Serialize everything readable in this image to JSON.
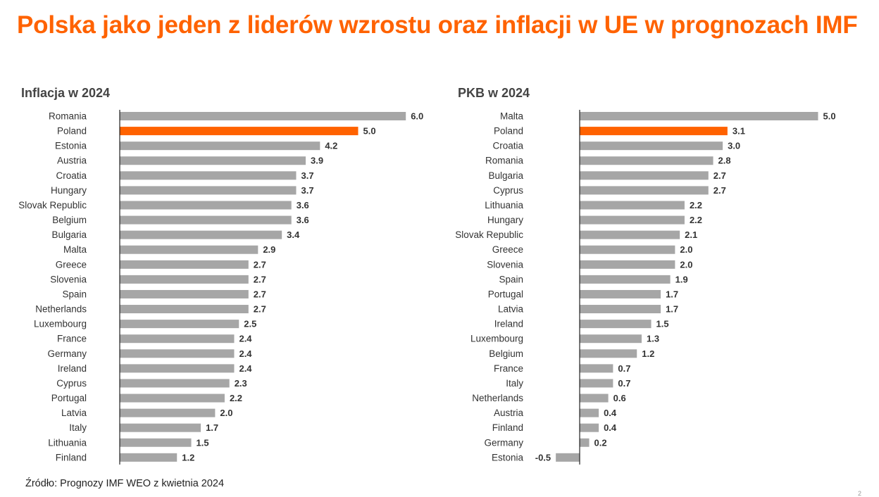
{
  "title": "Polska jako jeden z liderów wzrostu oraz inflacji w UE w prognozach IMF",
  "source": "Źródło: Prognozy IMF WEO z kwietnia 2024",
  "page_number": "2",
  "colors": {
    "title": "#ff6200",
    "bar": "#a6a6a6",
    "highlight": "#ff6200",
    "axis": "#222222"
  },
  "chart_data": [
    {
      "type": "bar",
      "orientation": "horizontal",
      "title": "Inflacja w 2024",
      "highlight": "Poland",
      "categories": [
        "Romania",
        "Poland",
        "Estonia",
        "Austria",
        "Croatia",
        "Hungary",
        "Slovak Republic",
        "Belgium",
        "Bulgaria",
        "Malta",
        "Greece",
        "Slovenia",
        "Spain",
        "Netherlands",
        "Luxembourg",
        "France",
        "Germany",
        "Ireland",
        "Cyprus",
        "Portugal",
        "Latvia",
        "Italy",
        "Lithuania",
        "Finland"
      ],
      "values": [
        6.0,
        5.0,
        4.2,
        3.9,
        3.7,
        3.7,
        3.6,
        3.6,
        3.4,
        2.9,
        2.7,
        2.7,
        2.7,
        2.7,
        2.5,
        2.4,
        2.4,
        2.4,
        2.3,
        2.2,
        2.0,
        1.7,
        1.5,
        1.2
      ],
      "value_labels": [
        "6.0",
        "5.0",
        "4.2",
        "3.9",
        "3.7",
        "3.7",
        "3.6",
        "3.6",
        "3.4",
        "2.9",
        "2.7",
        "2.7",
        "2.7",
        "2.7",
        "2.5",
        "2.4",
        "2.4",
        "2.4",
        "2.3",
        "2.2",
        "2.0",
        "1.7",
        "1.5",
        "1.2"
      ]
    },
    {
      "type": "bar",
      "orientation": "horizontal",
      "title": "PKB w 2024",
      "highlight": "Poland",
      "categories": [
        "Malta",
        "Poland",
        "Croatia",
        "Romania",
        "Bulgaria",
        "Cyprus",
        "Lithuania",
        "Hungary",
        "Slovak Republic",
        "Greece",
        "Slovenia",
        "Spain",
        "Portugal",
        "Latvia",
        "Ireland",
        "Luxembourg",
        "Belgium",
        "France",
        "Italy",
        "Netherlands",
        "Austria",
        "Finland",
        "Germany",
        "Estonia"
      ],
      "values": [
        5.0,
        3.1,
        3.0,
        2.8,
        2.7,
        2.7,
        2.2,
        2.2,
        2.1,
        2.0,
        2.0,
        1.9,
        1.7,
        1.7,
        1.5,
        1.3,
        1.2,
        0.7,
        0.7,
        0.6,
        0.4,
        0.4,
        0.2,
        -0.5
      ],
      "value_labels": [
        "5.0",
        "3.1",
        "3.0",
        "2.8",
        "2.7",
        "2.7",
        "2.2",
        "2.2",
        "2.1",
        "2.0",
        "2.0",
        "1.9",
        "1.7",
        "1.7",
        "1.5",
        "1.3",
        "1.2",
        "0.7",
        "0.7",
        "0.6",
        "0.4",
        "0.4",
        "0.2",
        "-0.5"
      ]
    }
  ]
}
